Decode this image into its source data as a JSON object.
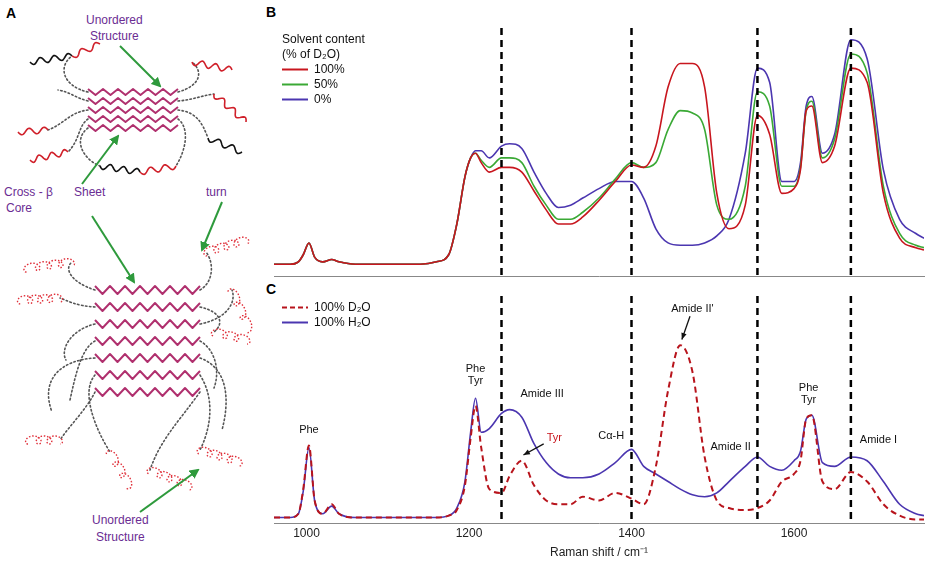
{
  "diagram": {
    "panel": "A",
    "top_label": [
      "Unordered",
      "Structure"
    ],
    "core_label": [
      "Cross - β",
      "Sheet",
      "Core"
    ],
    "turn_label": "turn",
    "bottom_label": [
      "Unordered",
      "Structure"
    ]
  },
  "chart_data": [
    {
      "panel": "B",
      "type": "line",
      "x": [
        960,
        980,
        990,
        996,
        1003,
        1010,
        1020,
        1031,
        1040,
        1060,
        1080,
        1100,
        1120,
        1140,
        1160,
        1175,
        1185,
        1195,
        1202,
        1208,
        1215,
        1225,
        1240,
        1250,
        1265,
        1280,
        1295,
        1310,
        1325,
        1340,
        1360,
        1380,
        1400,
        1415,
        1430,
        1445,
        1460,
        1475,
        1490,
        1505,
        1520,
        1540,
        1555,
        1570,
        1585,
        1600,
        1608,
        1615,
        1622,
        1635,
        1650,
        1670,
        1690,
        1710,
        1730,
        1750,
        1760
      ],
      "xlim": [
        960,
        1760
      ],
      "ylim": [
        0,
        105
      ],
      "grid": false,
      "tick_labels": false,
      "legend": "upper left",
      "legend_title": [
        "Solvent content",
        "(% of D₂O)"
      ],
      "reference_lines": [
        1240,
        1400,
        1555,
        1670
      ],
      "series": [
        {
          "name": "100%",
          "color": "#c8161e",
          "line_style": "solid",
          "values": [
            5,
            5,
            6,
            9,
            14,
            8,
            6,
            7,
            6,
            5,
            5,
            5,
            5,
            5,
            6,
            9,
            22,
            42,
            50,
            52,
            48,
            44,
            46,
            46,
            44,
            36,
            28,
            22,
            22,
            25,
            32,
            40,
            47,
            46,
            55,
            80,
            90,
            90,
            80,
            35,
            20,
            30,
            68,
            60,
            35,
            37,
            45,
            70,
            72,
            48,
            55,
            88,
            82,
            35,
            16,
            12,
            11
          ]
        },
        {
          "name": "50%",
          "color": "#3aa935",
          "line_style": "solid",
          "values": [
            5,
            5,
            6,
            9,
            14,
            8,
            6,
            7,
            6,
            5,
            5,
            5,
            5,
            5,
            6,
            9,
            22,
            42,
            50,
            52,
            49,
            46,
            50,
            50,
            48,
            38,
            30,
            24,
            24,
            27,
            33,
            41,
            48,
            46,
            48,
            62,
            70,
            69,
            62,
            30,
            24,
            38,
            78,
            72,
            38,
            38,
            46,
            70,
            74,
            50,
            58,
            94,
            86,
            38,
            18,
            13,
            12
          ]
        },
        {
          "name": "0%",
          "color": "#4b36b0",
          "line_style": "solid",
          "values": [
            5,
            5,
            6,
            9,
            14,
            8,
            6,
            7,
            6,
            5,
            5,
            5,
            5,
            5,
            6,
            9,
            22,
            42,
            50,
            53,
            53,
            50,
            55,
            56,
            54,
            44,
            35,
            29,
            30,
            33,
            37,
            40,
            40,
            33,
            20,
            14,
            13,
            13,
            14,
            17,
            24,
            52,
            88,
            82,
            40,
            40,
            48,
            72,
            76,
            52,
            60,
            100,
            92,
            45,
            24,
            18,
            16
          ]
        }
      ]
    },
    {
      "panel": "C",
      "type": "line",
      "x": [
        960,
        980,
        990,
        996,
        1003,
        1010,
        1020,
        1031,
        1040,
        1060,
        1080,
        1100,
        1120,
        1140,
        1160,
        1175,
        1185,
        1195,
        1202,
        1208,
        1215,
        1225,
        1240,
        1250,
        1265,
        1280,
        1295,
        1310,
        1325,
        1340,
        1360,
        1380,
        1400,
        1415,
        1430,
        1445,
        1460,
        1475,
        1490,
        1505,
        1520,
        1540,
        1555,
        1570,
        1585,
        1600,
        1608,
        1615,
        1622,
        1635,
        1650,
        1670,
        1690,
        1710,
        1730,
        1750,
        1760
      ],
      "xlim": [
        960,
        1760
      ],
      "xticks": [
        1000,
        1200,
        1400,
        1600
      ],
      "ylim": [
        0,
        120
      ],
      "xlabel": "Raman shift / cm⁻¹",
      "grid": false,
      "tick_labels": "x",
      "legend": "upper left",
      "reference_lines": [
        1240,
        1400,
        1555,
        1670
      ],
      "series": [
        {
          "name": "100% D₂O",
          "color": "#b8141c",
          "line_style": "dashed",
          "values": [
            3,
            3,
            5,
            18,
            41,
            12,
            5,
            10,
            5,
            3,
            3,
            3,
            3,
            3,
            3,
            4,
            7,
            20,
            45,
            62,
            40,
            18,
            16,
            25,
            33,
            20,
            12,
            10,
            10,
            14,
            12,
            16,
            13,
            10,
            30,
            70,
            94,
            80,
            35,
            12,
            8,
            7,
            8,
            12,
            22,
            26,
            33,
            55,
            57,
            22,
            18,
            27,
            22,
            10,
            4,
            2,
            2
          ]
        },
        {
          "name": "100% H₂O",
          "color": "#4b36b0",
          "line_style": "solid",
          "values": [
            3,
            3,
            5,
            17,
            40,
            12,
            5,
            9,
            5,
            3,
            3,
            3,
            3,
            3,
            3,
            4,
            8,
            22,
            48,
            66,
            48,
            50,
            58,
            60,
            56,
            42,
            32,
            26,
            24,
            24,
            26,
            32,
            39,
            30,
            26,
            22,
            18,
            15,
            14,
            16,
            22,
            30,
            35,
            30,
            28,
            33,
            38,
            55,
            57,
            32,
            30,
            35,
            33,
            22,
            10,
            5,
            4
          ]
        }
      ],
      "annotations": [
        {
          "text": [
            "Phe"
          ],
          "x": 1003,
          "y": 49
        },
        {
          "text": [
            "Phe",
            "Tyr"
          ],
          "x": 1208,
          "y": 75
        },
        {
          "text": [
            "Amide III"
          ],
          "x": 1290,
          "y": 68
        },
        {
          "text": [
            "Tyr"
          ],
          "x": 1305,
          "y": 45,
          "color": "#c8161e",
          "arrow_to": [
            1267,
            36
          ]
        },
        {
          "text": [
            "Cα-H"
          ],
          "x": 1375,
          "y": 46
        },
        {
          "text": [
            "Amide II'"
          ],
          "x": 1475,
          "y": 113,
          "arrow_to": [
            1462,
            97
          ]
        },
        {
          "text": [
            "Amide II"
          ],
          "x": 1522,
          "y": 40
        },
        {
          "text": [
            "Phe",
            "Tyr"
          ],
          "x": 1618,
          "y": 65
        },
        {
          "text": [
            "Amide I"
          ],
          "x": 1704,
          "y": 44
        }
      ]
    }
  ]
}
